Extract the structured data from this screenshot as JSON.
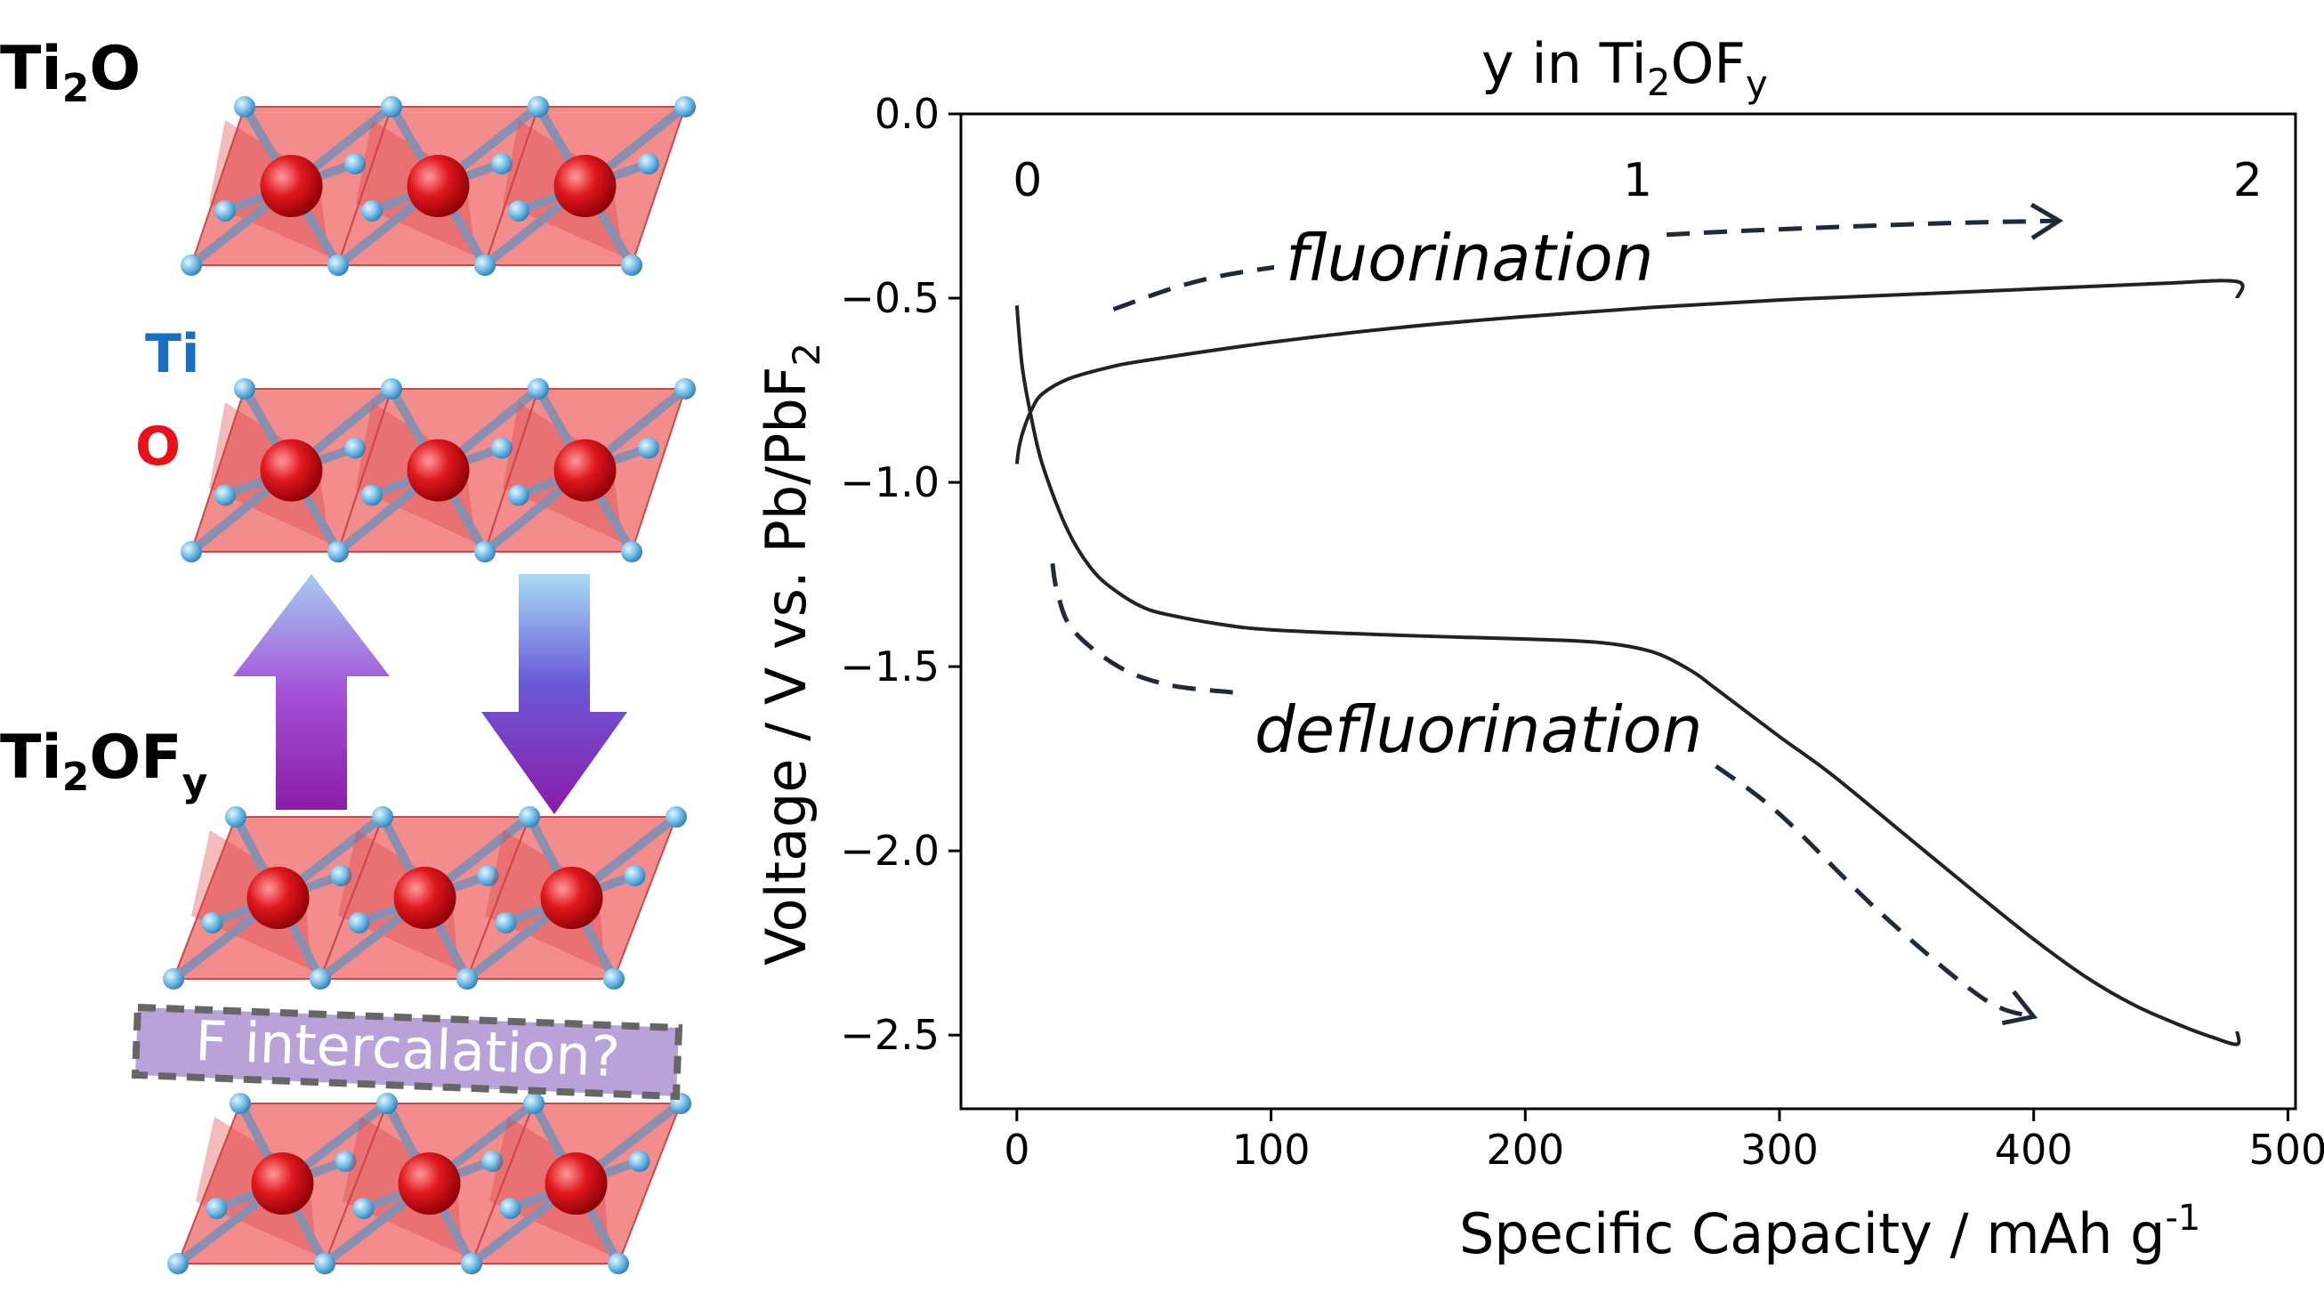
{
  "structures": {
    "top_label_main": "Ti",
    "top_label_sub": "2",
    "top_label_tail": "O",
    "bottom_label_main": "Ti",
    "bottom_label_sub": "2",
    "bottom_label_mid": "OF",
    "bottom_label_sub2": "y",
    "legend_ti": "Ti",
    "legend_o": "O",
    "intercalation_label": "F intercalation?",
    "colors": {
      "ti": "#1a6fc4",
      "o": "#e8111a",
      "octahedron": "#ef6b6b",
      "intercalation_box": "#b9a2d8"
    }
  },
  "annotations": {
    "fluorination": "fluorination",
    "defluorination": "defluorination"
  },
  "chart_data": {
    "type": "line",
    "title": "",
    "xlabel_main": "Specific Capacity / mAh g",
    "xlabel_sup": "-1",
    "ylabel_main": "Voltage / V vs. Pb/PbF",
    "ylabel_sub": "2",
    "top_axis_label_pre": "y in Ti",
    "top_axis_label_sub1": "2",
    "top_axis_label_mid": "OF",
    "top_axis_label_sub2": "y",
    "xlim": [
      -22,
      503
    ],
    "ylim": [
      -2.7,
      0.0
    ],
    "x_ticks": [
      0,
      100,
      200,
      300,
      400,
      500
    ],
    "x_tick_labels": [
      "0",
      "100",
      "200",
      "300",
      "400",
      "500"
    ],
    "y_ticks": [
      0.0,
      -0.5,
      -1.0,
      -1.5,
      -2.0,
      -2.5
    ],
    "y_tick_labels": [
      "0.0",
      "−0.5",
      "−1.0",
      "−1.5",
      "−2.0",
      "−2.5"
    ],
    "top_ticks": [
      0,
      240,
      480
    ],
    "top_tick_labels": [
      "0",
      "1",
      "2"
    ],
    "series": [
      {
        "x": [
          0,
          1,
          3,
          6,
          10,
          20,
          35,
          50,
          100,
          150,
          200,
          250,
          300,
          350,
          400,
          450,
          480,
          480
        ],
        "y": [
          -0.95,
          -0.9,
          -0.85,
          -0.8,
          -0.76,
          -0.72,
          -0.69,
          -0.67,
          -0.62,
          -0.58,
          -0.55,
          -0.525,
          -0.505,
          -0.49,
          -0.475,
          -0.46,
          -0.455,
          -0.5
        ]
      },
      {
        "x": [
          0,
          2,
          5,
          10,
          20,
          30,
          40,
          50,
          60,
          80,
          100,
          150,
          200,
          230,
          250,
          265,
          275,
          300,
          320,
          350,
          380,
          400,
          420,
          440,
          460,
          470,
          480,
          480
        ],
        "y": [
          -0.52,
          -0.68,
          -0.8,
          -0.95,
          -1.13,
          -1.24,
          -1.3,
          -1.34,
          -1.36,
          -1.385,
          -1.4,
          -1.415,
          -1.425,
          -1.435,
          -1.46,
          -1.51,
          -1.56,
          -1.69,
          -1.79,
          -1.96,
          -2.13,
          -2.24,
          -2.34,
          -2.42,
          -2.48,
          -2.505,
          -2.525,
          -2.49
        ]
      }
    ],
    "fluorination_arrow": {
      "x": [
        38,
        80,
        150,
        250,
        350,
        410
      ],
      "y": [
        -0.53,
        -0.44,
        -0.38,
        -0.33,
        -0.3,
        -0.29
      ]
    },
    "defluorination_arrow": {
      "x": [
        14,
        16,
        22,
        40,
        60,
        85
      ],
      "y": [
        -1.22,
        -1.3,
        -1.4,
        -1.5,
        -1.55,
        -1.57
      ]
    },
    "defluorination_arrow2": {
      "x": [
        275,
        300,
        340,
        380,
        400
      ],
      "y": [
        -1.77,
        -1.9,
        -2.17,
        -2.4,
        -2.45
      ]
    }
  }
}
